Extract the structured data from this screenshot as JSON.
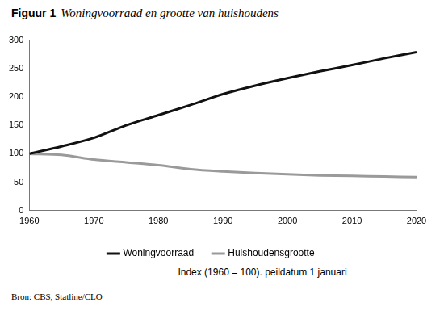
{
  "chart_data": {
    "type": "line",
    "label": "Figuur 1",
    "title": "Woningvoorraad en grootte van huishoudens",
    "annotations": [
      "Index (1960 = 100). peildatum 1 januari"
    ],
    "source": "Bron: CBS, Statline/CLO",
    "x": [
      1960,
      1965,
      1970,
      1975,
      1980,
      1985,
      1990,
      1995,
      2000,
      2005,
      2010,
      2015,
      2020
    ],
    "series": [
      {
        "name": "Woningvoorraad",
        "color": "#111111",
        "values": [
          100,
          113,
          128,
          150,
          168,
          186,
          205,
          220,
          233,
          245,
          256,
          268,
          279
        ]
      },
      {
        "name": "Huishoudensgrootte",
        "color": "#9a9a9a",
        "values": [
          100,
          98,
          90,
          85,
          80,
          73,
          69,
          66,
          64,
          62,
          61,
          60,
          59
        ]
      }
    ],
    "xlim": [
      1960,
      2020
    ],
    "xticks": [
      1960,
      1970,
      1980,
      1990,
      2000,
      2010,
      2020
    ],
    "ylim": [
      0,
      300
    ],
    "yticks": [
      0,
      50,
      100,
      150,
      200,
      250,
      300
    ],
    "grid": false,
    "legend": "bottom"
  }
}
